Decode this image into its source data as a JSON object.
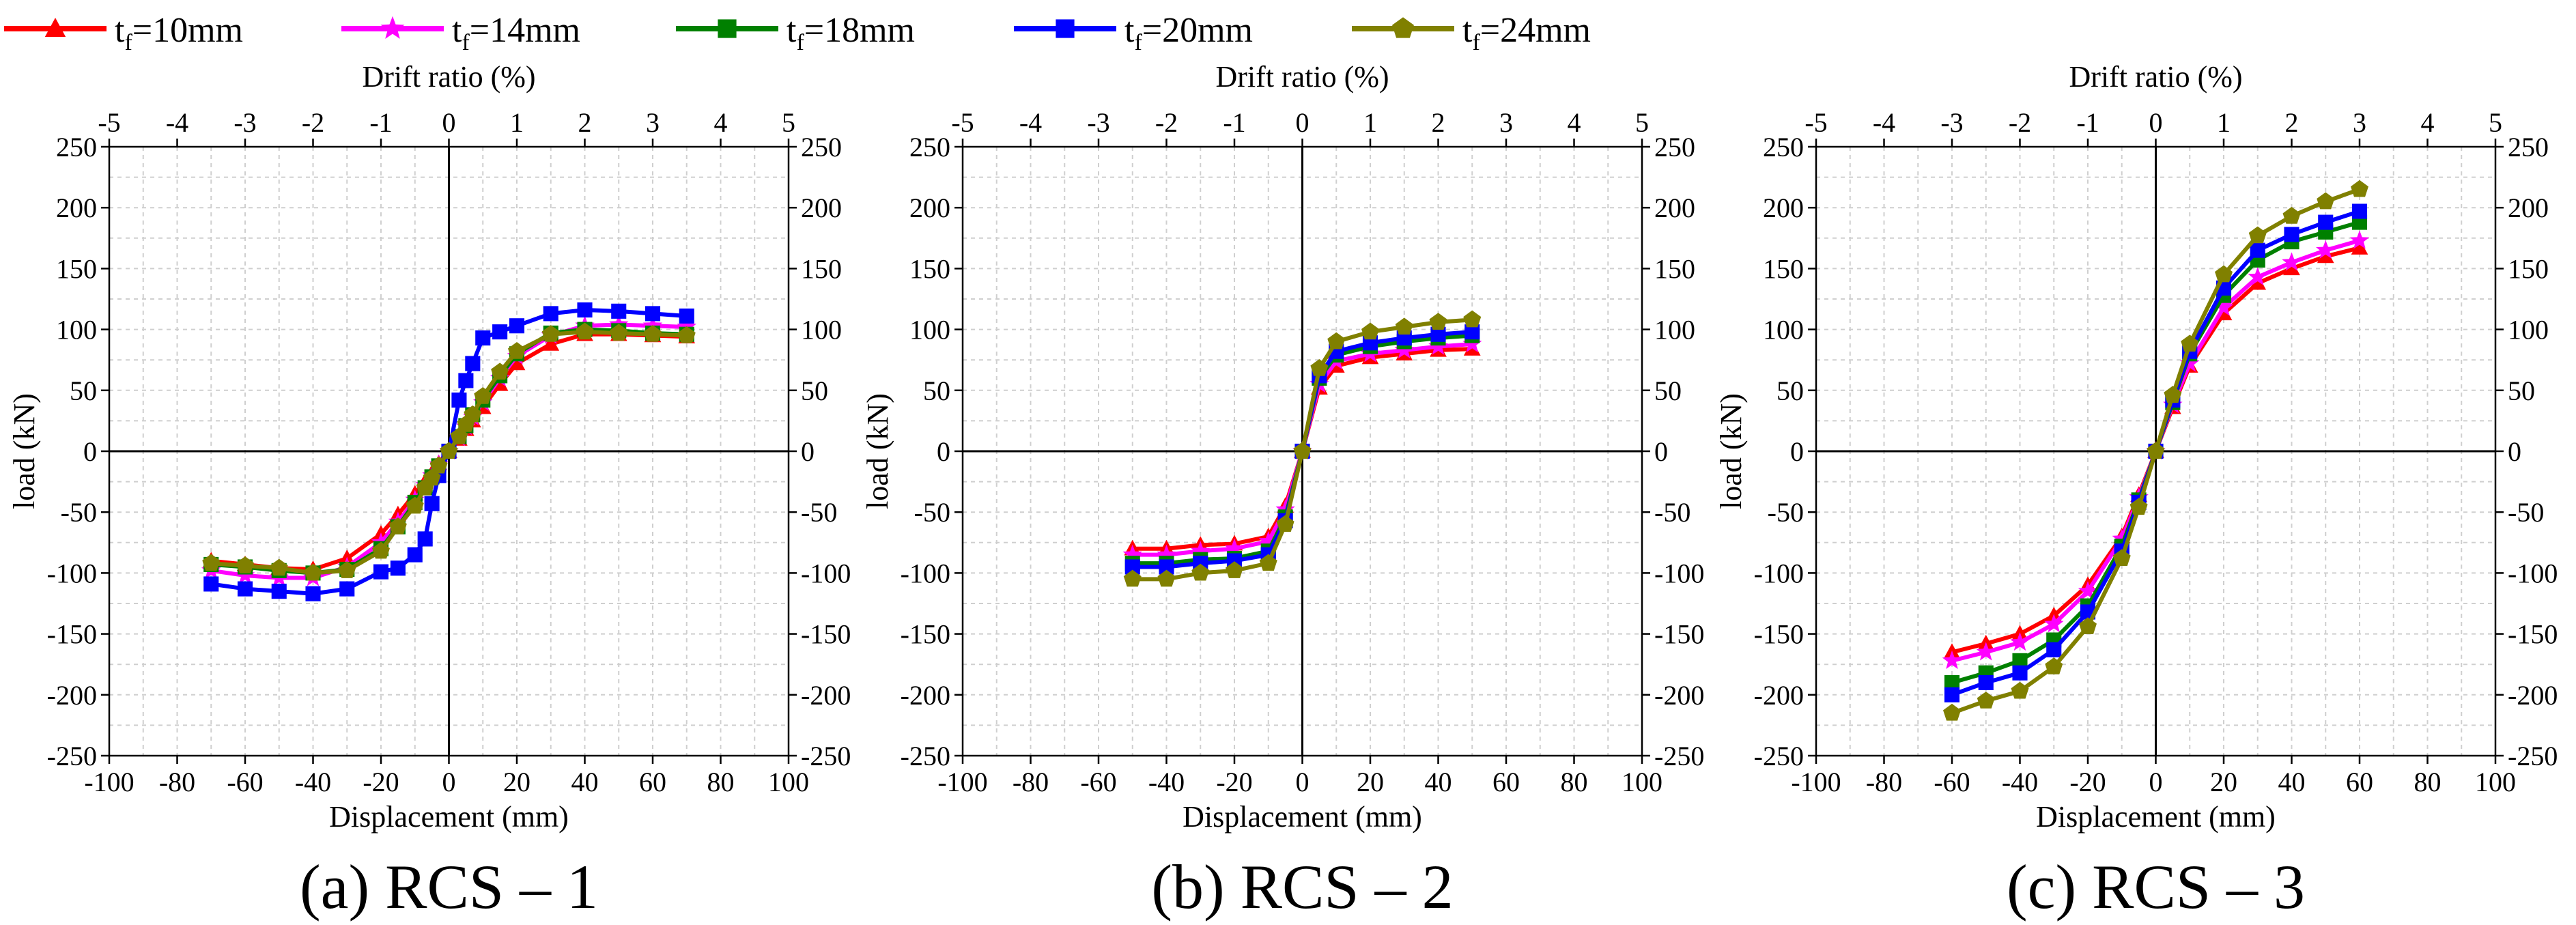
{
  "legend": [
    {
      "label_main": "t",
      "label_sub": "f",
      "label_rest": "=10mm",
      "color": "#ff0000",
      "marker": "triangle"
    },
    {
      "label_main": "t",
      "label_sub": "f",
      "label_rest": "=14mm",
      "color": "#ff00ff",
      "marker": "star"
    },
    {
      "label_main": "t",
      "label_sub": "f",
      "label_rest": "=18mm",
      "color": "#008000",
      "marker": "square"
    },
    {
      "label_main": "t",
      "label_sub": "f",
      "label_rest": "=20mm",
      "color": "#0000ff",
      "marker": "square"
    },
    {
      "label_main": "t",
      "label_sub": "f",
      "label_rest": "=24mm",
      "color": "#808000",
      "marker": "pentagon"
    }
  ],
  "chart_data": [
    {
      "type": "line",
      "caption": "(a) RCS – 1",
      "xlabel": "Displacement (mm)",
      "ylabel": "load (kN)",
      "top_xlabel": "Drift ratio (%)",
      "xlim": [
        -100,
        100
      ],
      "ylim": [
        -250,
        250
      ],
      "top_xlim": [
        -5,
        5
      ],
      "xticks": [
        -100,
        -80,
        -60,
        -40,
        -20,
        0,
        20,
        40,
        60,
        80,
        100
      ],
      "yticks": [
        -250,
        -200,
        -150,
        -100,
        -50,
        0,
        50,
        100,
        150,
        200,
        250
      ],
      "top_xticks": [
        -5,
        -4,
        -3,
        -2,
        -1,
        0,
        1,
        2,
        3,
        4,
        5
      ],
      "grid": true,
      "series": [
        {
          "name": "tf=10mm",
          "x": [
            -70,
            -60,
            -50,
            -40,
            -30,
            -20,
            -15,
            -10,
            -7,
            -5,
            -3,
            0,
            3,
            5,
            7,
            10,
            15,
            20,
            30,
            40,
            50,
            60,
            70
          ],
          "y": [
            -90,
            -93,
            -96,
            -97,
            -88,
            -68,
            -52,
            -35,
            -25,
            -18,
            -10,
            0,
            10,
            18,
            25,
            36,
            55,
            72,
            88,
            96,
            96,
            95,
            94
          ]
        },
        {
          "name": "tf=14mm",
          "x": [
            -70,
            -60,
            -50,
            -40,
            -30,
            -20,
            -15,
            -10,
            -7,
            -5,
            -3,
            0,
            3,
            5,
            7,
            10,
            15,
            20,
            30,
            40,
            50,
            60,
            70
          ],
          "y": [
            -98,
            -102,
            -104,
            -104,
            -95,
            -75,
            -58,
            -40,
            -28,
            -20,
            -11,
            0,
            11,
            20,
            28,
            40,
            60,
            78,
            95,
            103,
            104,
            103,
            102
          ]
        },
        {
          "name": "tf=18mm",
          "x": [
            -70,
            -60,
            -50,
            -40,
            -30,
            -20,
            -15,
            -10,
            -7,
            -5,
            -3,
            0,
            3,
            5,
            7,
            10,
            15,
            20,
            30,
            40,
            50,
            60,
            70
          ],
          "y": [
            -93,
            -95,
            -98,
            -100,
            -97,
            -80,
            -62,
            -42,
            -30,
            -21,
            -12,
            0,
            12,
            21,
            30,
            42,
            62,
            80,
            97,
            100,
            99,
            97,
            96
          ]
        },
        {
          "name": "tf=20mm",
          "x": [
            -70,
            -60,
            -50,
            -40,
            -30,
            -20,
            -15,
            -10,
            -7,
            -5,
            -3,
            0,
            3,
            5,
            7,
            10,
            15,
            20,
            30,
            40,
            50,
            60,
            70
          ],
          "y": [
            -109,
            -113,
            -115,
            -117,
            -113,
            -99,
            -96,
            -85,
            -72,
            -43,
            -20,
            0,
            42,
            58,
            72,
            93,
            98,
            103,
            113,
            116,
            115,
            113,
            111
          ]
        },
        {
          "name": "tf=24mm",
          "x": [
            -70,
            -60,
            -50,
            -40,
            -30,
            -20,
            -15,
            -10,
            -7,
            -5,
            -3,
            0,
            3,
            5,
            7,
            10,
            15,
            20,
            30,
            40,
            50,
            60,
            70
          ],
          "y": [
            -92,
            -94,
            -96,
            -100,
            -98,
            -82,
            -62,
            -45,
            -30,
            -22,
            -12,
            0,
            12,
            22,
            30,
            45,
            65,
            82,
            96,
            98,
            97,
            96,
            95
          ]
        }
      ]
    },
    {
      "type": "line",
      "caption": "(b) RCS – 2",
      "xlabel": "Displacement (mm)",
      "ylabel": "load (kN)",
      "top_xlabel": "Drift ratio (%)",
      "xlim": [
        -100,
        100
      ],
      "ylim": [
        -250,
        250
      ],
      "top_xlim": [
        -5,
        5
      ],
      "xticks": [
        -100,
        -80,
        -60,
        -40,
        -20,
        0,
        20,
        40,
        60,
        80,
        100
      ],
      "yticks": [
        -250,
        -200,
        -150,
        -100,
        -50,
        0,
        50,
        100,
        150,
        200,
        250
      ],
      "top_xticks": [
        -5,
        -4,
        -3,
        -2,
        -1,
        0,
        1,
        2,
        3,
        4,
        5
      ],
      "grid": true,
      "series": [
        {
          "name": "tf=10mm",
          "x": [
            -50,
            -40,
            -30,
            -20,
            -10,
            -5,
            0,
            5,
            10,
            20,
            30,
            40,
            50
          ],
          "y": [
            -80,
            -80,
            -77,
            -76,
            -70,
            -45,
            0,
            52,
            70,
            77,
            80,
            83,
            84
          ]
        },
        {
          "name": "tf=14mm",
          "x": [
            -50,
            -40,
            -30,
            -20,
            -10,
            -5,
            0,
            5,
            10,
            20,
            30,
            40,
            50
          ],
          "y": [
            -85,
            -85,
            -82,
            -80,
            -74,
            -48,
            0,
            55,
            74,
            80,
            83,
            86,
            88
          ]
        },
        {
          "name": "tf=18mm",
          "x": [
            -50,
            -40,
            -30,
            -20,
            -10,
            -5,
            0,
            5,
            10,
            20,
            30,
            40,
            50
          ],
          "y": [
            -92,
            -92,
            -89,
            -88,
            -82,
            -54,
            0,
            60,
            79,
            86,
            90,
            93,
            95
          ]
        },
        {
          "name": "tf=20mm",
          "x": [
            -50,
            -40,
            -30,
            -20,
            -10,
            -5,
            0,
            5,
            10,
            20,
            30,
            40,
            50
          ],
          "y": [
            -95,
            -95,
            -92,
            -90,
            -85,
            -57,
            0,
            62,
            82,
            89,
            93,
            96,
            98
          ]
        },
        {
          "name": "tf=24mm",
          "x": [
            -50,
            -40,
            -30,
            -20,
            -10,
            -5,
            0,
            5,
            10,
            20,
            30,
            40,
            50
          ],
          "y": [
            -105,
            -105,
            -100,
            -98,
            -92,
            -60,
            0,
            68,
            90,
            98,
            102,
            106,
            108
          ]
        }
      ]
    },
    {
      "type": "line",
      "caption": "(c) RCS – 3",
      "xlabel": "Displacement (mm)",
      "ylabel": "load (kN)",
      "top_xlabel": "Drift ratio (%)",
      "xlim": [
        -100,
        100
      ],
      "ylim": [
        -250,
        250
      ],
      "top_xlim": [
        -5,
        5
      ],
      "xticks": [
        -100,
        -80,
        -60,
        -40,
        -20,
        0,
        20,
        40,
        60,
        80,
        100
      ],
      "yticks": [
        -250,
        -200,
        -150,
        -100,
        -50,
        0,
        50,
        100,
        150,
        200,
        250
      ],
      "top_xticks": [
        -5,
        -4,
        -3,
        -2,
        -1,
        0,
        1,
        2,
        3,
        4,
        5
      ],
      "grid": true,
      "series": [
        {
          "name": "tf=10mm",
          "x": [
            -60,
            -50,
            -40,
            -30,
            -20,
            -10,
            -5,
            0,
            5,
            10,
            20,
            30,
            40,
            50,
            60
          ],
          "y": [
            -165,
            -158,
            -150,
            -135,
            -110,
            -70,
            -36,
            0,
            36,
            70,
            113,
            138,
            150,
            160,
            167
          ]
        },
        {
          "name": "tf=14mm",
          "x": [
            -60,
            -50,
            -40,
            -30,
            -20,
            -10,
            -5,
            0,
            5,
            10,
            20,
            30,
            40,
            50,
            60
          ],
          "y": [
            -172,
            -165,
            -157,
            -142,
            -115,
            -72,
            -38,
            0,
            38,
            72,
            118,
            143,
            155,
            165,
            173
          ]
        },
        {
          "name": "tf=18mm",
          "x": [
            -60,
            -50,
            -40,
            -30,
            -20,
            -10,
            -5,
            0,
            5,
            10,
            20,
            30,
            40,
            50,
            60
          ],
          "y": [
            -190,
            -182,
            -172,
            -155,
            -127,
            -78,
            -40,
            0,
            40,
            80,
            128,
            157,
            172,
            180,
            188
          ]
        },
        {
          "name": "tf=20mm",
          "x": [
            -60,
            -50,
            -40,
            -30,
            -20,
            -10,
            -5,
            0,
            5,
            10,
            20,
            30,
            40,
            50,
            60
          ],
          "y": [
            -200,
            -190,
            -182,
            -163,
            -132,
            -82,
            -42,
            0,
            42,
            82,
            134,
            165,
            178,
            188,
            197
          ]
        },
        {
          "name": "tf=24mm",
          "x": [
            -60,
            -50,
            -40,
            -30,
            -20,
            -10,
            -5,
            0,
            5,
            10,
            20,
            30,
            40,
            50,
            60
          ],
          "y": [
            -215,
            -205,
            -197,
            -177,
            -144,
            -88,
            -46,
            0,
            46,
            88,
            145,
            177,
            193,
            205,
            215
          ]
        }
      ]
    }
  ]
}
